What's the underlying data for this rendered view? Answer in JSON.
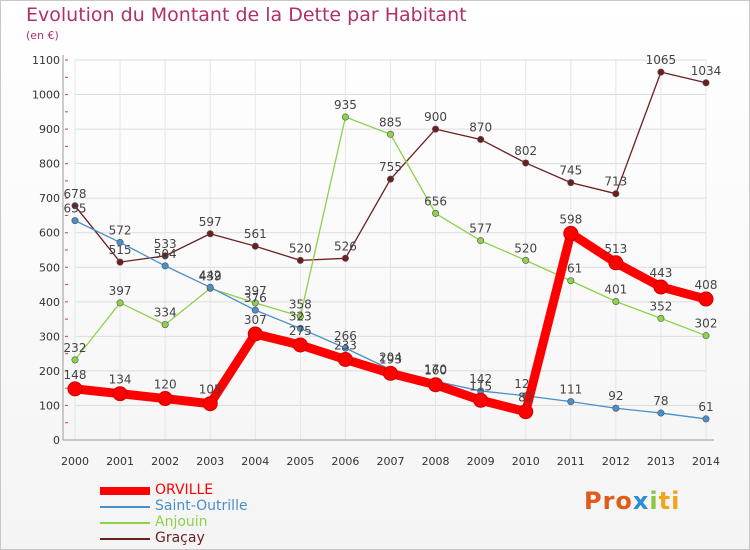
{
  "chart_data": {
    "type": "line",
    "title": "Evolution du Montant de la Dette par Habitant",
    "subtitle": "(en €)",
    "x": [
      "2000",
      "2001",
      "2002",
      "2003",
      "2004",
      "2005",
      "2006",
      "2007",
      "2008",
      "2009",
      "2010",
      "2011",
      "2012",
      "2013",
      "2014"
    ],
    "ylim": [
      0,
      1100
    ],
    "yticks": [
      0,
      100,
      200,
      300,
      400,
      500,
      600,
      700,
      800,
      900,
      1000,
      1100
    ],
    "grid": true,
    "series": [
      {
        "name": "ORVILLE",
        "color": "#ff0000",
        "values": [
          148,
          134,
          120,
          105,
          307,
          275,
          233,
          193,
          160,
          115,
          82,
          598,
          513,
          443,
          408
        ]
      },
      {
        "name": "Saint-Outrille",
        "color": "#4a8fc8",
        "values": [
          635,
          572,
          504,
          442,
          376,
          323,
          266,
          204,
          170,
          142,
          128,
          111,
          92,
          78,
          61
        ]
      },
      {
        "name": "Anjouin",
        "color": "#8cd24a",
        "values": [
          232,
          397,
          334,
          439,
          397,
          358,
          935,
          885,
          656,
          577,
          520,
          461,
          401,
          352,
          302
        ]
      },
      {
        "name": "Graçay",
        "color": "#6b1f1f",
        "values": [
          678,
          515,
          533,
          597,
          561,
          520,
          526,
          755,
          900,
          870,
          802,
          745,
          713,
          1065,
          1034
        ]
      }
    ]
  },
  "legend": {
    "items": [
      {
        "label": "ORVILLE",
        "color": "#ff0000"
      },
      {
        "label": "Saint-Outrille",
        "color": "#4a8fc8"
      },
      {
        "label": "Anjouin",
        "color": "#8cd24a"
      },
      {
        "label": "Graçay",
        "color": "#6b1f1f"
      }
    ]
  },
  "brand": {
    "part1": "Pro",
    "part2": "x",
    "part3": "i",
    "part4": "ti"
  }
}
